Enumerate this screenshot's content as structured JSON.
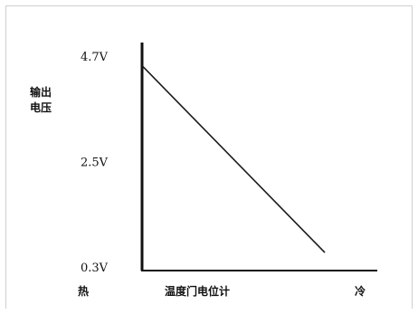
{
  "chart_data": {
    "type": "line",
    "title": "",
    "ylabel_lines": [
      "输出",
      "电压"
    ],
    "xlabel": "温度门电位计",
    "x_start_label": "热",
    "x_end_label": "冷",
    "y_tick_labels": [
      "4.7V",
      "2.5V",
      "0.3V"
    ],
    "y_tick_values": [
      4.7,
      2.5,
      0.3
    ],
    "ylim": [
      0.3,
      4.7
    ],
    "xlim": [
      0,
      100
    ],
    "grid": false,
    "series": [
      {
        "x": [
          0,
          100
        ],
        "y": [
          4.5,
          0.6
        ]
      }
    ],
    "colors": {
      "axis": "#111111",
      "line": "#1a1a1a"
    }
  }
}
